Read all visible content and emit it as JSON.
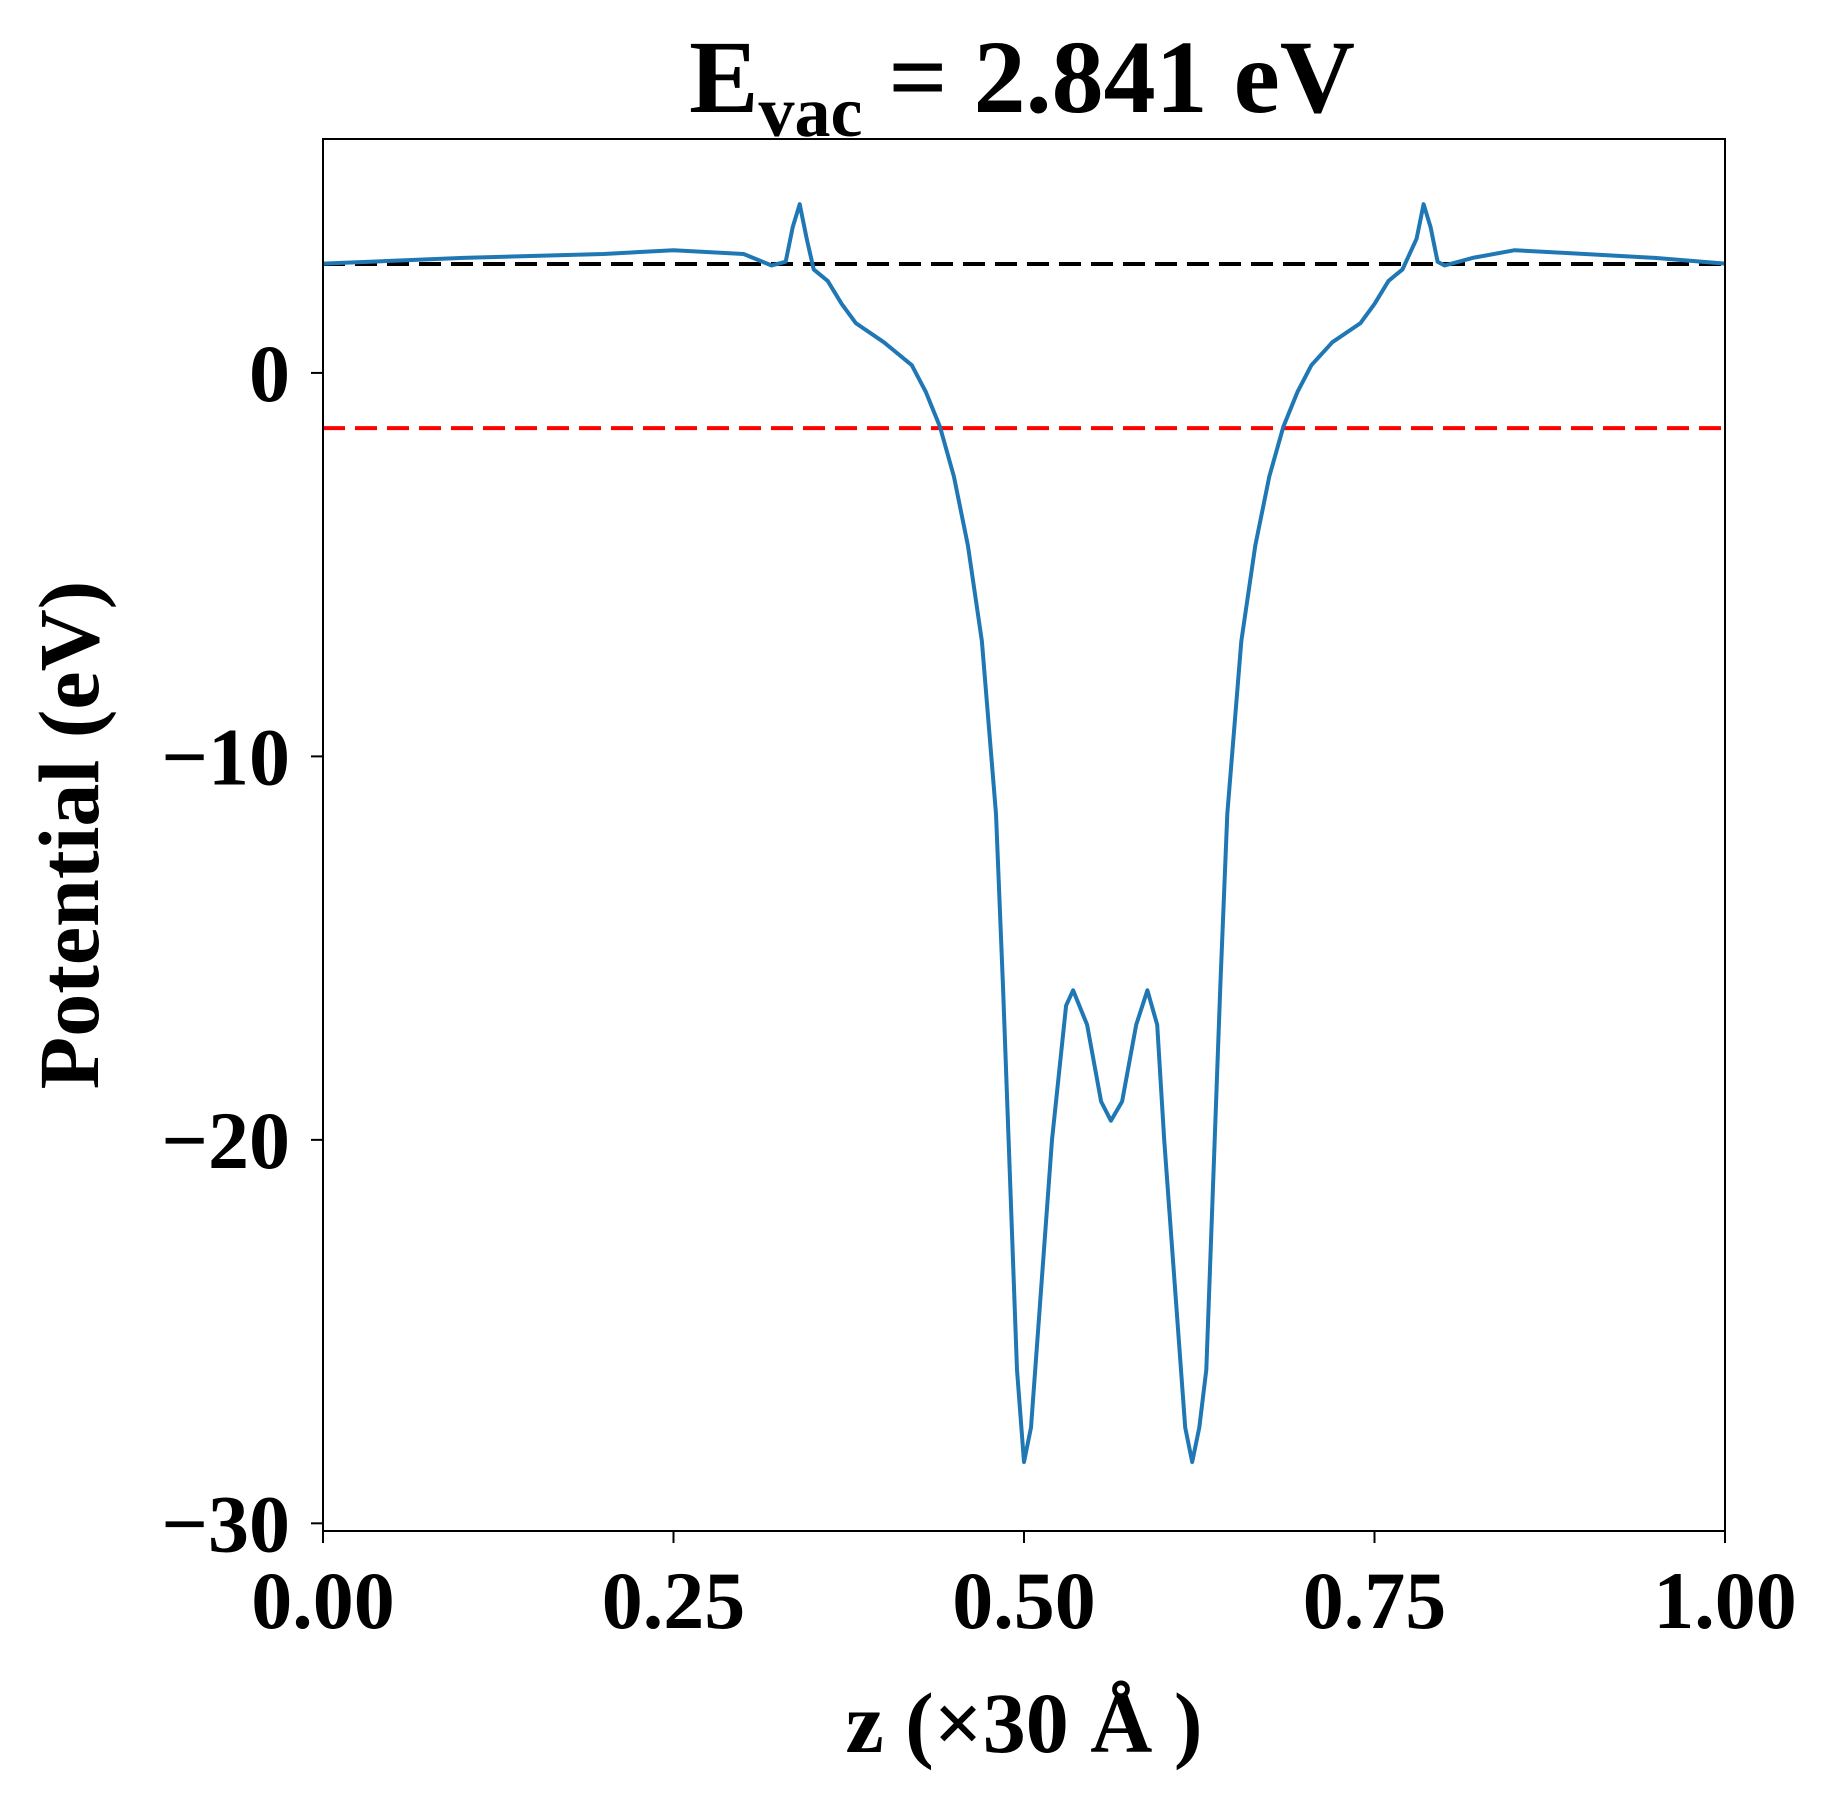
{
  "chart_data": {
    "type": "line",
    "title": "E",
    "title_sub": "vac",
    "title_rest": "= 2.841 eV",
    "xlabel": "z (×30 Å )",
    "ylabel": "Potential (eV)",
    "xlim": [
      0,
      1
    ],
    "ylim": [
      -30.2,
      6.1
    ],
    "xticks": [
      {
        "value": 0,
        "label": "0.00"
      },
      {
        "value": 0.25,
        "label": "0.25"
      },
      {
        "value": 0.5,
        "label": "0.50"
      },
      {
        "value": 0.75,
        "label": "0.75"
      },
      {
        "value": 1,
        "label": "1.00"
      }
    ],
    "yticks": [
      {
        "value": -30,
        "label": "−30"
      },
      {
        "value": -20,
        "label": "−20"
      },
      {
        "value": -10,
        "label": "−10"
      },
      0
    ],
    "hlines": [
      {
        "value": 2.841,
        "color": "#000000"
      },
      {
        "value": -1.44,
        "color": "#ff0000"
      }
    ],
    "x": [
      0,
      0.1,
      0.2,
      0.25,
      0.3,
      0.32,
      0.33,
      0.335,
      0.34,
      0.345,
      0.35,
      0.36,
      0.37,
      0.38,
      0.4,
      0.42,
      0.43,
      0.44,
      0.45,
      0.46,
      0.47,
      0.48,
      0.485,
      0.49,
      0.495,
      0.5,
      0.505,
      0.51,
      0.52,
      0.53,
      0.535,
      0.545,
      0.555,
      0.562,
      0.57,
      0.58,
      0.588,
      0.595,
      0.6,
      0.61,
      0.615,
      0.62,
      0.625,
      0.63,
      0.635,
      0.64,
      0.645,
      0.655,
      0.665,
      0.675,
      0.685,
      0.695,
      0.705,
      0.72,
      0.74,
      0.75,
      0.76,
      0.77,
      0.78,
      0.785,
      0.79,
      0.795,
      0.8,
      0.82,
      0.85,
      0.9,
      0.95,
      1
    ],
    "series": [
      {
        "color": "#1f77b4",
        "values": [
          2.85,
          3.0,
          3.1,
          3.2,
          3.1,
          2.8,
          2.9,
          3.8,
          4.4,
          3.5,
          2.7,
          2.4,
          1.8,
          1.3,
          0.8,
          0.2,
          -0.5,
          -1.4,
          -2.7,
          -4.5,
          -7.0,
          -11.5,
          -16,
          -21,
          -26,
          -28.4,
          -27.5,
          -25,
          -20,
          -16.5,
          -16.1,
          -17,
          -19,
          -19.5,
          -19,
          -17,
          -16.1,
          -17,
          -20,
          -25,
          -27.5,
          -28.4,
          -27.5,
          -26,
          -21,
          -16,
          -11.5,
          -7,
          -4.5,
          -2.7,
          -1.4,
          -0.5,
          0.2,
          0.8,
          1.3,
          1.8,
          2.4,
          2.7,
          3.5,
          4.4,
          3.8,
          2.9,
          2.8,
          3.0,
          3.2,
          3.1,
          3.0,
          2.85
        ]
      }
    ]
  }
}
